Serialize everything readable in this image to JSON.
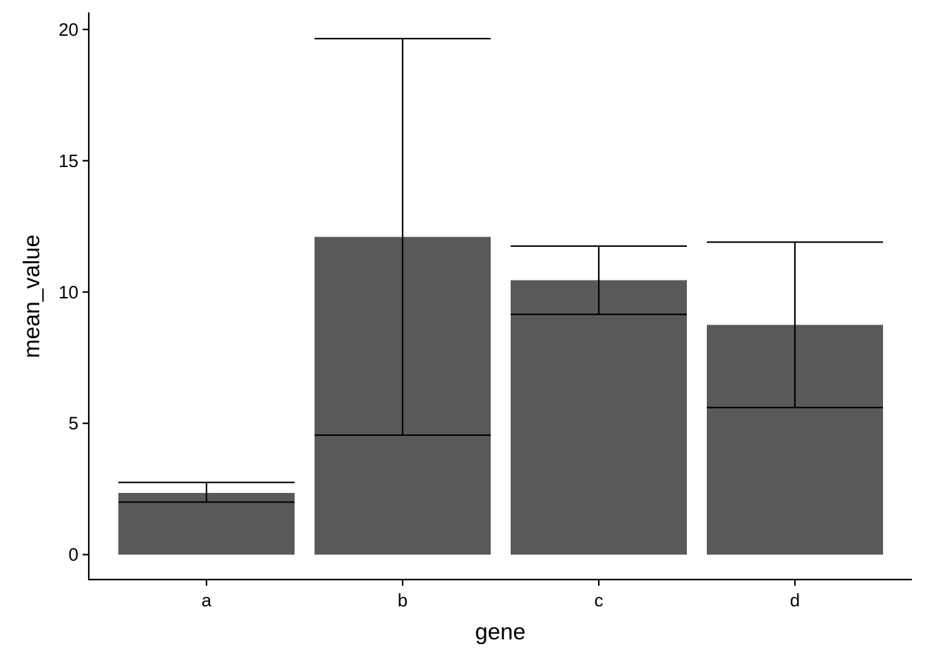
{
  "chart_data": {
    "type": "bar",
    "title": "",
    "xlabel": "gene",
    "ylabel": "mean_value",
    "categories": [
      "a",
      "b",
      "c",
      "d"
    ],
    "values": [
      2.35,
      12.1,
      10.45,
      8.75
    ],
    "error_bars": [
      {
        "low": 2.0,
        "high": 2.75
      },
      {
        "low": 4.55,
        "high": 19.65
      },
      {
        "low": 9.15,
        "high": 11.75
      },
      {
        "low": 5.6,
        "high": 11.9
      }
    ],
    "ylim": [
      -0.95,
      20.65
    ],
    "yticks": [
      0,
      5,
      10,
      15,
      20
    ],
    "ytick_labels": [
      "0",
      "5",
      "10",
      "15",
      "20"
    ],
    "grid": false,
    "legend": "none",
    "bar_color": "#595959",
    "line_color": "#000000"
  }
}
